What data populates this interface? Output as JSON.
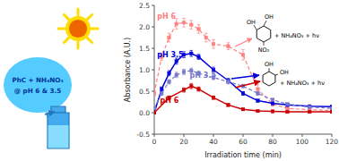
{
  "chart_data": {
    "type": "line",
    "xlabel": "Irradiation time (min)",
    "ylabel": "Absorbance (A.U.)",
    "xlim": [
      0,
      120
    ],
    "ylim": [
      -0.5,
      2.5
    ],
    "xticks": [
      0,
      20,
      40,
      60,
      80,
      100,
      120
    ],
    "yticks": [
      -0.5,
      {
        "value": 0.0,
        "label": "0.0"
      },
      0.5,
      {
        "value": 1.0,
        "label": "1.0"
      },
      1.5,
      {
        "value": 2.0,
        "label": "2.0"
      },
      2.5
    ],
    "series": [
      {
        "color": "#ff8080",
        "line_style": "dashed",
        "marker": "square",
        "x": [
          0,
          5,
          10,
          15,
          20,
          25,
          30,
          35,
          40,
          50,
          60,
          70,
          80,
          90,
          105,
          120
        ],
        "values": [
          0.45,
          1.3,
          1.75,
          2.07,
          2.1,
          2.05,
          1.95,
          1.75,
          1.6,
          1.55,
          1.35,
          0.55,
          0.2,
          0.1,
          0.07,
          0.05
        ],
        "errors": [
          0.05,
          0.08,
          0.1,
          0.12,
          0.1,
          0.1,
          0.1,
          0.1,
          0.1,
          0.08,
          0.12,
          0.1,
          0.05,
          0.03,
          0.02,
          0.02
        ]
      },
      {
        "color": "#0000dd",
        "line_style": "solid",
        "marker": "square",
        "x": [
          0,
          5,
          10,
          15,
          20,
          25,
          30,
          40,
          50,
          60,
          70,
          80,
          90,
          105,
          120
        ],
        "values": [
          0.0,
          0.55,
          0.92,
          1.2,
          1.35,
          1.38,
          1.3,
          1.0,
          0.75,
          0.45,
          0.28,
          0.22,
          0.18,
          0.15,
          0.14
        ],
        "errors": [
          0.02,
          0.05,
          0.06,
          0.07,
          0.07,
          0.07,
          0.06,
          0.06,
          0.05,
          0.04,
          0.03,
          0.03,
          0.02,
          0.02,
          0.02
        ]
      },
      {
        "color": "#7777cc",
        "line_style": "dashed",
        "marker": "square",
        "x": [
          0,
          5,
          10,
          15,
          20,
          25,
          30,
          40,
          50,
          60,
          70,
          80,
          90,
          105,
          120
        ],
        "values": [
          0.1,
          0.45,
          0.72,
          0.88,
          0.95,
          0.98,
          0.92,
          0.82,
          0.72,
          0.62,
          0.45,
          0.3,
          0.2,
          0.13,
          0.1
        ],
        "errors": [
          0.02,
          0.04,
          0.05,
          0.06,
          0.06,
          0.06,
          0.05,
          0.05,
          0.05,
          0.04,
          0.04,
          0.03,
          0.02,
          0.02,
          0.02
        ]
      },
      {
        "color": "#cc0000",
        "line_style": "solid",
        "marker": "square",
        "x": [
          0,
          10,
          20,
          25,
          30,
          40,
          50,
          60,
          70,
          80,
          90,
          105,
          120
        ],
        "values": [
          0.0,
          0.35,
          0.53,
          0.62,
          0.55,
          0.35,
          0.18,
          0.08,
          0.04,
          0.03,
          0.02,
          0.02,
          0.02
        ],
        "errors": [
          0.02,
          0.04,
          0.05,
          0.06,
          0.05,
          0.04,
          0.03,
          0.02,
          0.01,
          0.01,
          0.01,
          0.01,
          0.01
        ]
      }
    ],
    "annotations": [
      {
        "text": "pH 6",
        "x": 2,
        "y": 2.18,
        "color": "#ff8080"
      },
      {
        "text": "pH 3.5",
        "x": 2,
        "y": 1.3,
        "color": "#0000dd"
      },
      {
        "text": "pH 3.5",
        "x": 24,
        "y": 0.82,
        "color": "#7777cc"
      },
      {
        "text": "pH 6",
        "x": 4,
        "y": 0.22,
        "color": "#cc0000"
      },
      {
        "text": "PhC + NH₄NO₃",
        "color": "#003399"
      },
      {
        "text": "@ pH 6 & 3.5",
        "color": "#003399"
      },
      {
        "text": "OH",
        "color": "black"
      },
      {
        "text": "OH",
        "color": "black"
      },
      {
        "text": "NO₂",
        "color": "black"
      },
      {
        "text": "+ NH₄NO₃ + hν",
        "color": "black"
      },
      {
        "text": "OH",
        "color": "black"
      },
      {
        "text": "OH",
        "color": "black"
      },
      {
        "text": "+ NH₄NO₃ + hν",
        "color": "black"
      }
    ]
  }
}
